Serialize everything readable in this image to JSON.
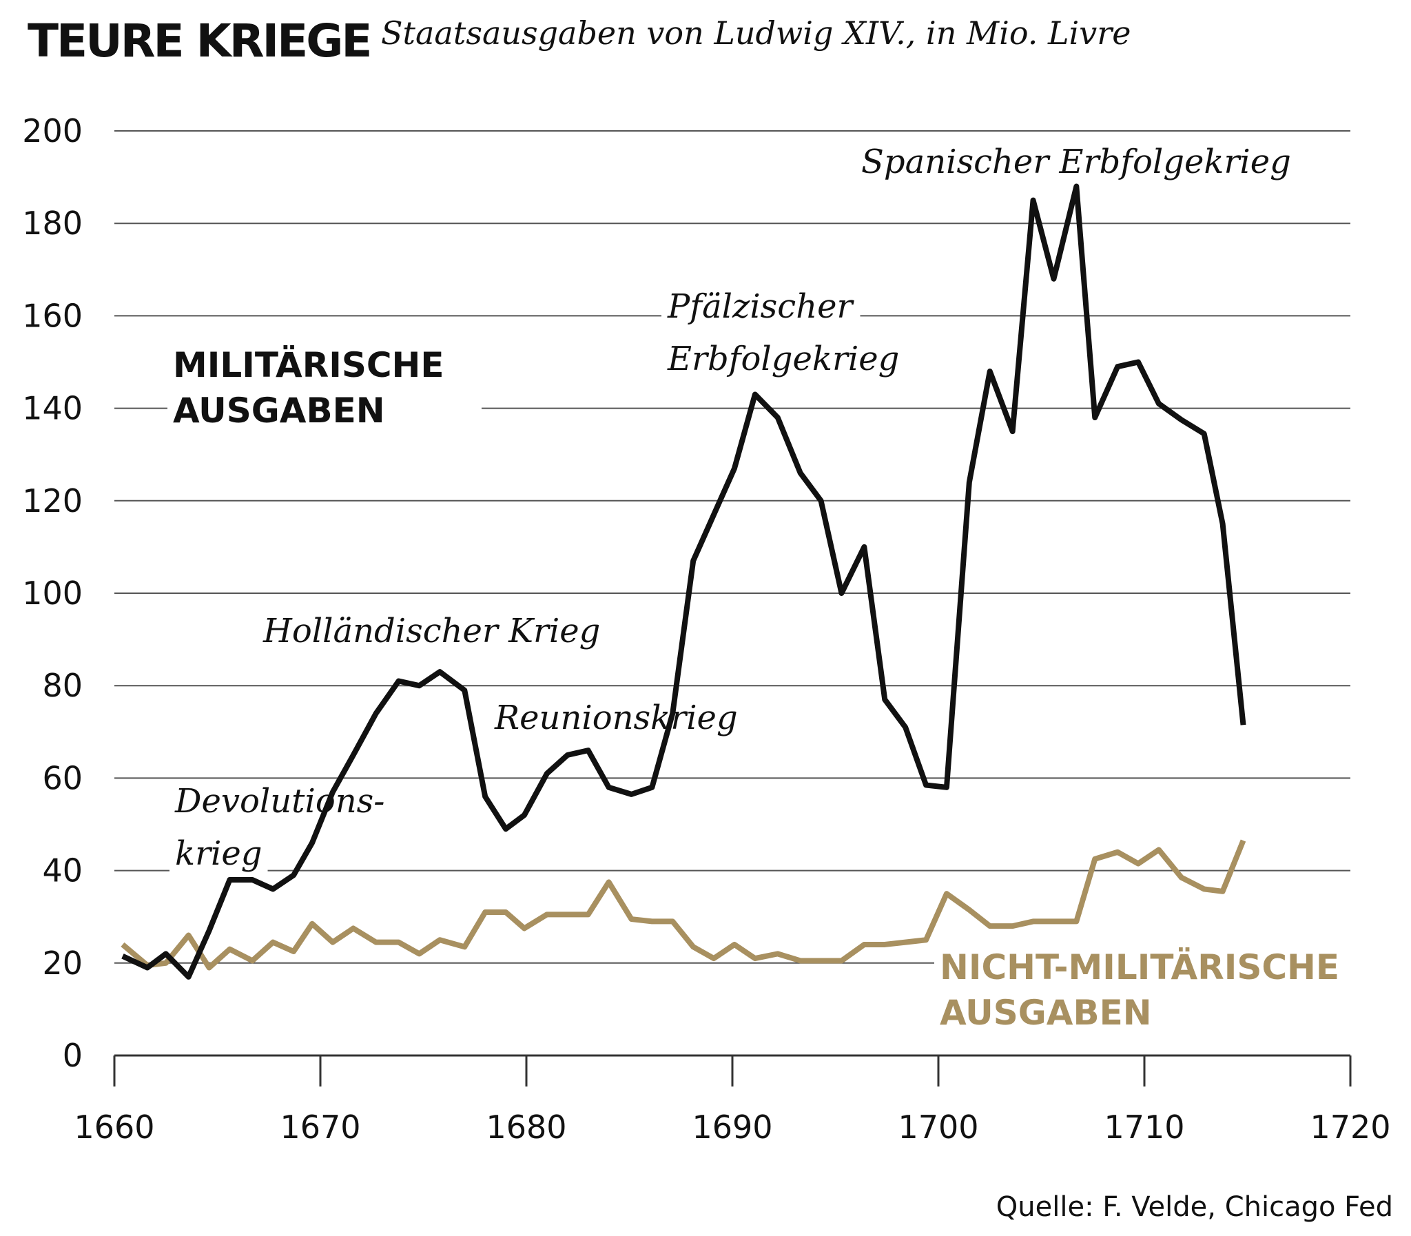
{
  "chart_data": {
    "type": "line",
    "title": "TEURE KRIEGE",
    "subtitle": "Staatsausgaben von Ludwig XIV., in Mio. Livre",
    "source": "Quelle: F. Velde, Chicago Fed",
    "x": [
      1660.4,
      1661.6,
      1662.5,
      1663.6,
      1664.6,
      1665.6,
      1666.7,
      1667.7,
      1668.7,
      1669.6,
      1670.6,
      1671.6,
      1672.7,
      1673.8,
      1674.8,
      1675.8,
      1677.0,
      1678.0,
      1679.0,
      1679.9,
      1681.0,
      1682.0,
      1683.0,
      1684.0,
      1685.1,
      1686.1,
      1687.1,
      1688.1,
      1689.1,
      1690.1,
      1691.1,
      1692.2,
      1693.3,
      1694.3,
      1695.3,
      1696.4,
      1697.4,
      1698.4,
      1699.4,
      1700.4,
      1701.5,
      1702.5,
      1703.6,
      1704.6,
      1705.6,
      1706.7,
      1707.6,
      1708.7,
      1709.7,
      1710.7,
      1711.8,
      1712.9,
      1713.8,
      1714.8
    ],
    "series": [
      {
        "name": "MILITÄRISCHE AUSGABEN",
        "color": "#111111",
        "values": [
          21.5,
          19,
          22,
          17,
          27,
          38,
          38,
          36,
          39,
          46,
          57,
          65,
          74,
          81,
          80,
          83,
          79,
          56,
          49,
          52,
          61,
          65,
          66,
          58,
          56.5,
          58,
          74,
          107,
          117,
          127,
          143,
          138,
          126,
          120,
          100,
          110,
          77,
          71,
          58.5,
          58,
          124,
          148,
          135,
          185,
          168,
          188,
          138,
          149,
          150,
          141,
          137.5,
          134.5,
          115,
          71.5
        ]
      },
      {
        "name": "NICHT-MILITÄRISCHE AUSGABEN",
        "color": "#a89060",
        "values": [
          24,
          19.5,
          20,
          26,
          19,
          23,
          20.5,
          24.5,
          22.5,
          28.5,
          24.5,
          27.5,
          24.5,
          24.5,
          22,
          25,
          23.5,
          31,
          31,
          27.5,
          30.5,
          30.5,
          30.5,
          37.5,
          29.5,
          29,
          29,
          23.5,
          21,
          24,
          21,
          22,
          20.5,
          20.5,
          20.5,
          24,
          24,
          24.5,
          25,
          35,
          31.5,
          28,
          28,
          29,
          29,
          29,
          42.5,
          44,
          41.5,
          44.5,
          38.5,
          36,
          35.5,
          46.5
        ]
      }
    ],
    "annotations": [
      {
        "lines": [
          "Devolutions-",
          "krieg"
        ]
      },
      {
        "lines": [
          "Holländischer Krieg"
        ]
      },
      {
        "lines": [
          "Reunionskrieg"
        ]
      },
      {
        "lines": [
          "Pfälzischer",
          "Erbfolgekrieg"
        ]
      },
      {
        "lines": [
          "Spanischer Erbfolgekrieg"
        ]
      }
    ],
    "xlim": [
      1660,
      1720
    ],
    "xticks": [
      1660,
      1670,
      1680,
      1690,
      1700,
      1710,
      1720
    ],
    "ylim": [
      0,
      200
    ],
    "yticks": [
      0,
      20,
      40,
      60,
      80,
      100,
      120,
      140,
      160,
      180,
      200
    ],
    "grid": true
  }
}
